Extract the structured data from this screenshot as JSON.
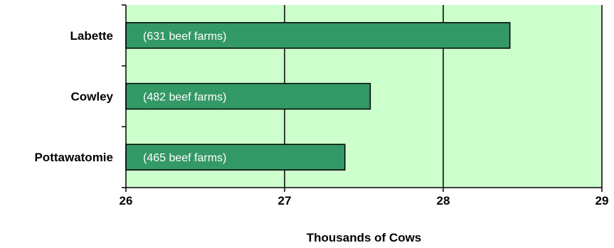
{
  "chart_data": {
    "type": "bar",
    "orientation": "horizontal",
    "categories": [
      "Labette",
      "Cowley",
      "Pottawatomie"
    ],
    "values": [
      28.42,
      27.54,
      27.38
    ],
    "bar_labels": [
      "(631 beef farms)",
      "(482 beef farms)",
      "(465 beef farms)"
    ],
    "xlabel": "Thousands of Cows",
    "ylabel": "",
    "title": "",
    "xlim": [
      26,
      29
    ],
    "xticks": [
      "26",
      "27",
      "28",
      "29"
    ],
    "grid": true,
    "legend": "none"
  },
  "colors": {
    "plot_background": "#ccffcc",
    "bar_fill": "#339966",
    "bar_stroke": "#000000",
    "gridline": "#000000"
  }
}
